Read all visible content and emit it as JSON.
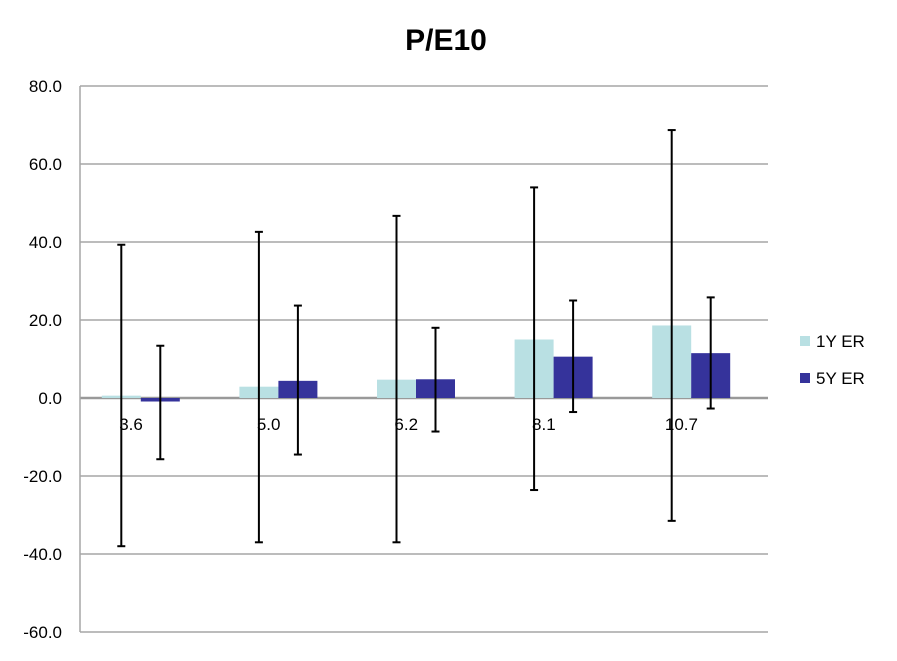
{
  "chart_data": {
    "type": "bar",
    "title": "P/E10",
    "xlabel": "",
    "ylabel": "",
    "categories": [
      "3.6",
      "5.0",
      "6.2",
      "8.1",
      "10.7"
    ],
    "ylim": [
      -60,
      80
    ],
    "yticks": [
      "80.0",
      "60.0",
      "40.0",
      "20.0",
      "0.0",
      "-20.0",
      "-40.0",
      "-60.0"
    ],
    "grid": true,
    "legend_position": "right",
    "series": [
      {
        "name": "1Y ER",
        "color": "#b9e0e3",
        "values": [
          0.6,
          2.9,
          4.7,
          15.0,
          18.6
        ],
        "error_high": [
          39.3,
          42.6,
          46.7,
          54.0,
          68.7
        ],
        "error_low": [
          -38.0,
          -37.0,
          -37.0,
          -23.6,
          -31.5
        ]
      },
      {
        "name": "5Y ER",
        "color": "#35339b",
        "values": [
          -0.9,
          4.4,
          4.8,
          10.6,
          11.5
        ],
        "error_high": [
          13.4,
          23.7,
          18.0,
          25.0,
          25.8
        ],
        "error_low": [
          -15.7,
          -14.5,
          -8.6,
          -3.6,
          -2.7
        ]
      }
    ]
  }
}
